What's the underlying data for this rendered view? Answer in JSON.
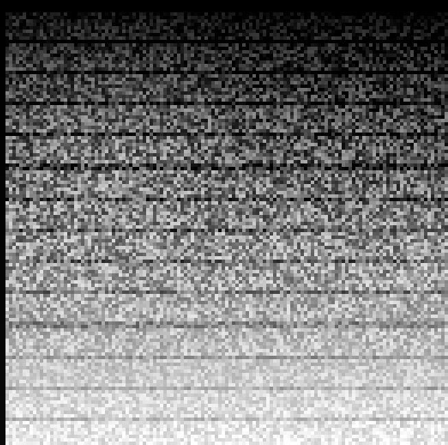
{
  "image": {
    "description_kind": "grayscale-noise-gradient",
    "gradient": {
      "direction": "top-to-bottom",
      "start_color": "#0a0a0a",
      "end_color": "#f4f4f4"
    },
    "stripe_color": "#1a1a1a",
    "border_color": "#000000"
  }
}
